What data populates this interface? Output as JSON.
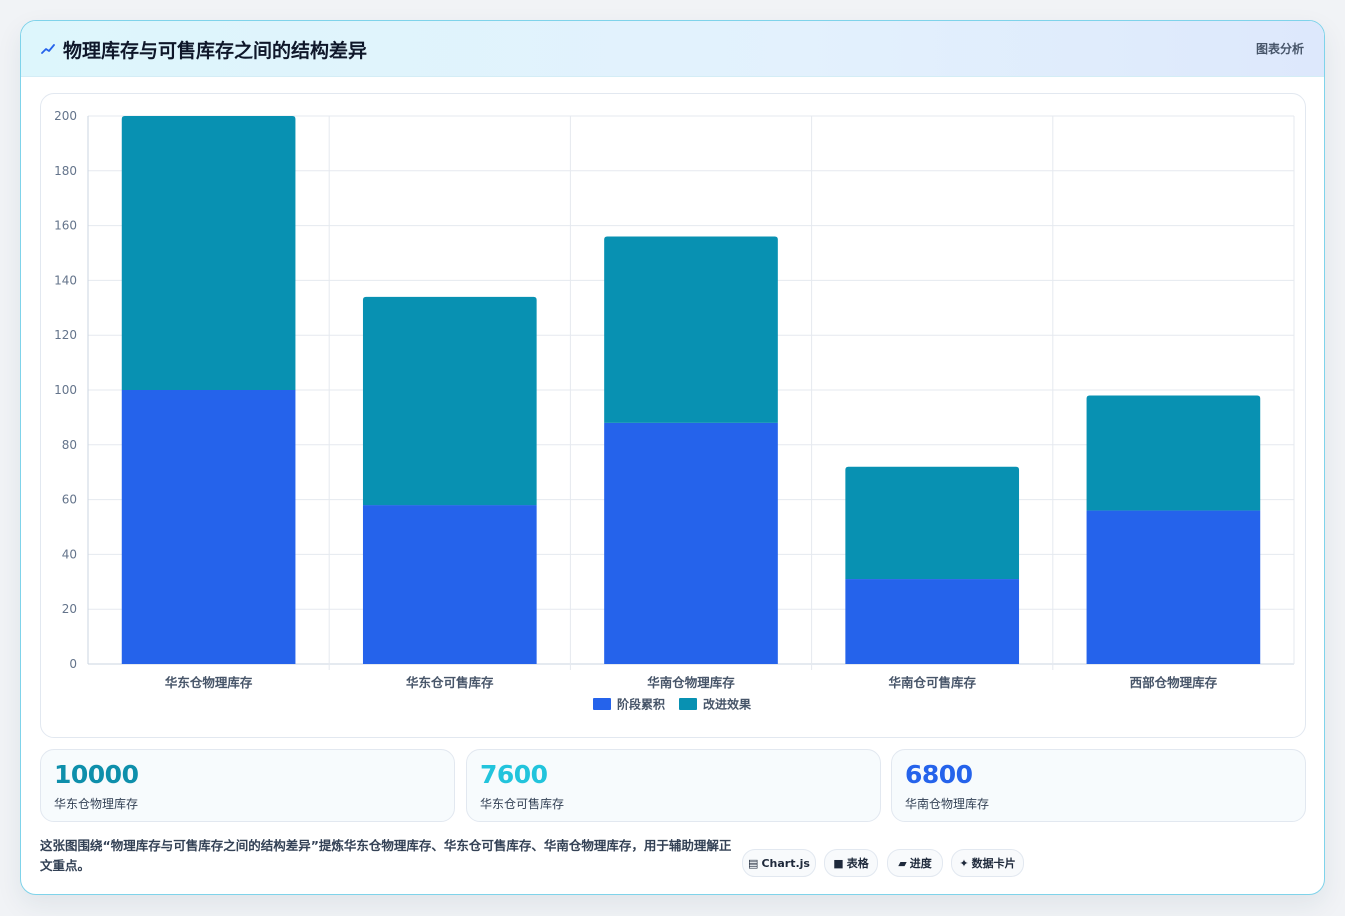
{
  "header": {
    "title": "物理库存与可售库存之间的结构差异",
    "tag": "图表分析"
  },
  "chart_data": {
    "type": "bar",
    "stacked": true,
    "categories": [
      "华东仓物理库存",
      "华东仓可售库存",
      "华南仓物理库存",
      "华南仓可售库存",
      "西部仓物理库存"
    ],
    "series": [
      {
        "name": "阶段累积",
        "values": [
          100,
          58,
          88,
          31,
          56
        ],
        "color": "#2563eb"
      },
      {
        "name": "改进效果",
        "values": [
          100,
          76,
          68,
          41,
          42
        ],
        "color": "#0891b2"
      }
    ],
    "ylim": [
      0,
      200
    ],
    "yticks": [
      0,
      20,
      40,
      60,
      80,
      100,
      120,
      140,
      160,
      180,
      200
    ],
    "grid": true,
    "legend": "bottom"
  },
  "stats": [
    {
      "value": "10000",
      "label": "华东仓物理库存",
      "color": "#0e8fab"
    },
    {
      "value": "7600",
      "label": "华东仓可售库存",
      "color": "#22c4dc"
    },
    {
      "value": "6800",
      "label": "华南仓物理库存",
      "color": "#2563eb"
    }
  ],
  "caption": "这张图围绕“物理库存与可售库存之间的结构差异”提炼华东仓物理库存、华东仓可售库存、华南仓物理库存，用于辅助理解正文重点。",
  "chips": [
    {
      "icon": "▤",
      "icon_name": "chart-icon",
      "label": "Chart.js"
    },
    {
      "icon": "■",
      "icon_name": "table-icon",
      "label": "表格"
    },
    {
      "icon": "▰",
      "icon_name": "progress-icon",
      "label": "进度"
    },
    {
      "icon": "✦",
      "icon_name": "sparkle-icon",
      "label": "数据卡片"
    }
  ]
}
